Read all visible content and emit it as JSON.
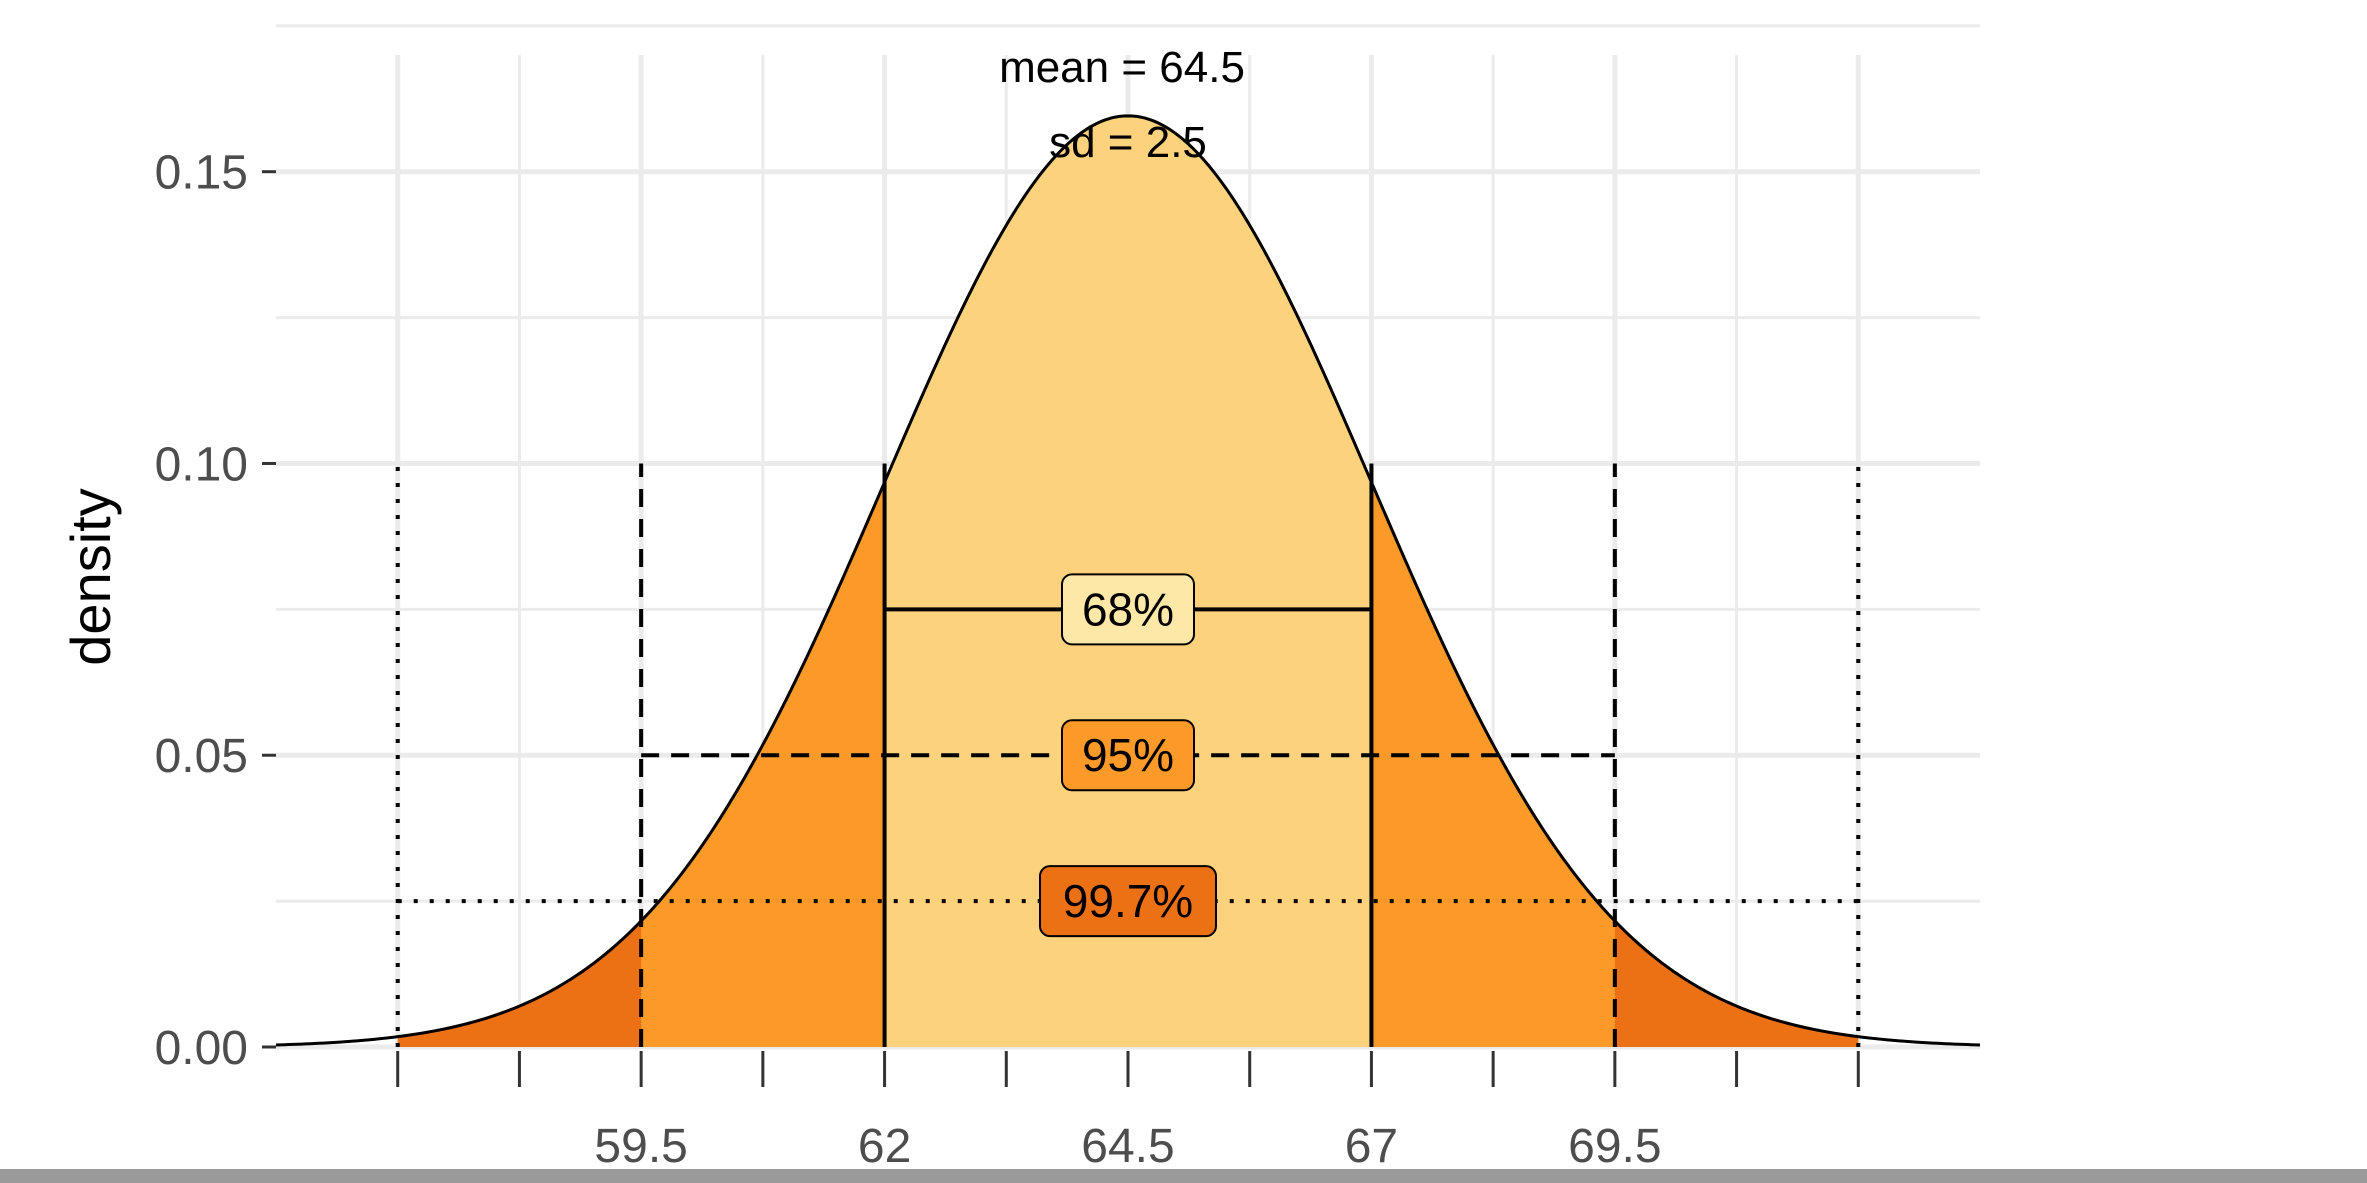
{
  "chart_data": {
    "type": "area",
    "distribution": "normal",
    "mean": 64.5,
    "sd": 2.5,
    "annotations": [
      "mean = 64.5",
      "sd = 2.5"
    ],
    "xlabel": "",
    "ylabel": "density",
    "x_ticks": [
      59.5,
      62,
      64.5,
      67,
      69.5
    ],
    "y_ticks": [
      0.0,
      0.05,
      0.1,
      0.15
    ],
    "y_tick_labels": [
      "0.00",
      "0.05",
      "0.10",
      "0.15"
    ],
    "xlim": [
      55.75,
      73.25
    ],
    "ylim": [
      0,
      0.17
    ],
    "grid": true,
    "regions": [
      {
        "name": "99.7%",
        "from": 57,
        "to": 72,
        "color": "#ec7014"
      },
      {
        "name": "95%",
        "from": 59.5,
        "to": 69.5,
        "color": "#fb9a29"
      },
      {
        "name": "68%",
        "from": 62,
        "to": 67,
        "color": "#fdd27c"
      }
    ],
    "intervals": [
      {
        "label": "68%",
        "from": 62,
        "to": 67,
        "y": 0.075,
        "style": "solid",
        "fill": "#fee8a8"
      },
      {
        "label": "95%",
        "from": 59.5,
        "to": 69.5,
        "y": 0.05,
        "style": "dashed",
        "fill": "#fb9a29"
      },
      {
        "label": "99.7%",
        "from": 57,
        "to": 72,
        "y": 0.025,
        "style": "dotted",
        "fill": "#ec7014"
      }
    ],
    "colors": {
      "curve": "#000000",
      "grid": "#ebebeb"
    }
  }
}
